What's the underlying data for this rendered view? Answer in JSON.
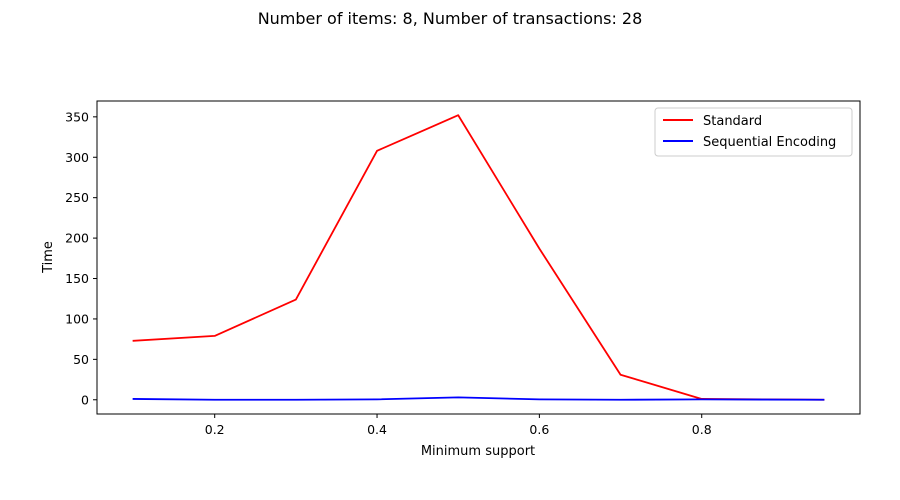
{
  "chart_data": {
    "type": "line",
    "title": "Number of items: 8, Number of transactions: 28",
    "xlabel": "Minimum support",
    "ylabel": "Time",
    "xlim": [
      0.055,
      0.995
    ],
    "ylim": [
      -17.6,
      369.6
    ],
    "xticks": [
      0.2,
      0.4,
      0.6,
      0.8
    ],
    "xtick_labels": [
      "0.2",
      "0.4",
      "0.6",
      "0.8"
    ],
    "yticks": [
      0,
      50,
      100,
      150,
      200,
      250,
      300,
      350
    ],
    "ytick_labels": [
      "0",
      "50",
      "100",
      "150",
      "200",
      "250",
      "300",
      "350"
    ],
    "grid": false,
    "legend_position": "top-right",
    "x": [
      0.1,
      0.2,
      0.3,
      0.4,
      0.5,
      0.6,
      0.7,
      0.8,
      0.95
    ],
    "series": [
      {
        "name": "Standard",
        "color": "#ff0000",
        "values": [
          73,
          79,
          124,
          308,
          352,
          187,
          31,
          1,
          0
        ]
      },
      {
        "name": "Sequential Encoding",
        "color": "#0000ff",
        "values": [
          1,
          0,
          0,
          0.5,
          3,
          0.5,
          0,
          0.5,
          0
        ]
      }
    ]
  }
}
